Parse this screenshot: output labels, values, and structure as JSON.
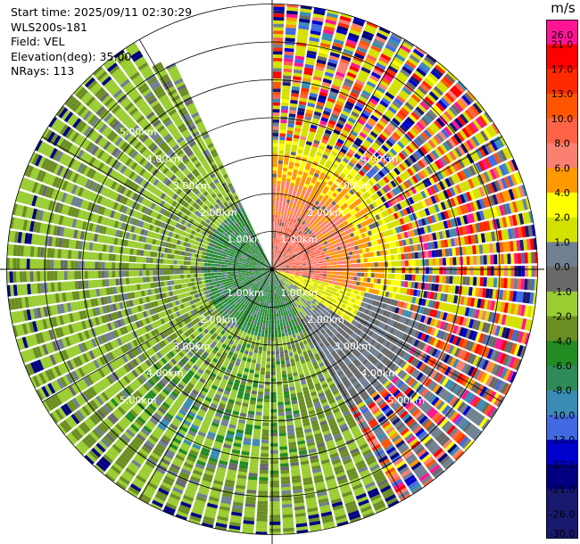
{
  "header": {
    "start_time": "Start time: 2025/09/11 02:30:29",
    "instrument": "WLS200s-181",
    "field": "Field: VEL",
    "elevation": "Elevation(deg): 35.00",
    "nrays": "NRays: 113"
  },
  "chart_data": {
    "type": "ppi",
    "field": "VEL",
    "units": "m/s",
    "elevation_deg": 35.0,
    "n_rays": 113,
    "range_rings_km": [
      1.0,
      2.0,
      3.0,
      4.0,
      5.0
    ],
    "range_ring_labels": [
      "1.00km",
      "2.00km",
      "3.00km",
      "4.00km",
      "5.00km"
    ],
    "max_range_km": 7.0,
    "gap_sector_deg": [
      -25,
      0
    ],
    "colorbar": {
      "unit_label": "m/s",
      "ticks": [
        "26.0",
        "21.0",
        "17.0",
        "13.0",
        "10.0",
        "8.0",
        "6.0",
        "4.0",
        "2.0",
        "1.0",
        "0.0",
        "-1.0",
        "-2.0",
        "-4.0",
        "-6.0",
        "-8.0",
        "-10.0",
        "-13.0",
        "-17.0",
        "-21.0",
        "-26.0",
        "-30.0"
      ],
      "colors": [
        "#ff1493",
        "#ff0000",
        "#ff2a00",
        "#ff5500",
        "#ff6347",
        "#fa8072",
        "#ff9900",
        "#ffff00",
        "#d4e000",
        "#708090",
        "#696969",
        "#9acd32",
        "#6b8e23",
        "#228b22",
        "#2e8b57",
        "#3a8cb4",
        "#4169e1",
        "#0000cd",
        "#000080",
        "#191970",
        "#191970"
      ]
    },
    "sectors": [
      {
        "name": "northeast-positive",
        "az_from": 0,
        "az_to": 110,
        "dominant": "4.0 to 8.0 m/s"
      },
      {
        "name": "south-southwest-negative",
        "az_from": 110,
        "az_to": 335,
        "dominant": "-1.0 to -6.0 m/s"
      }
    ]
  }
}
